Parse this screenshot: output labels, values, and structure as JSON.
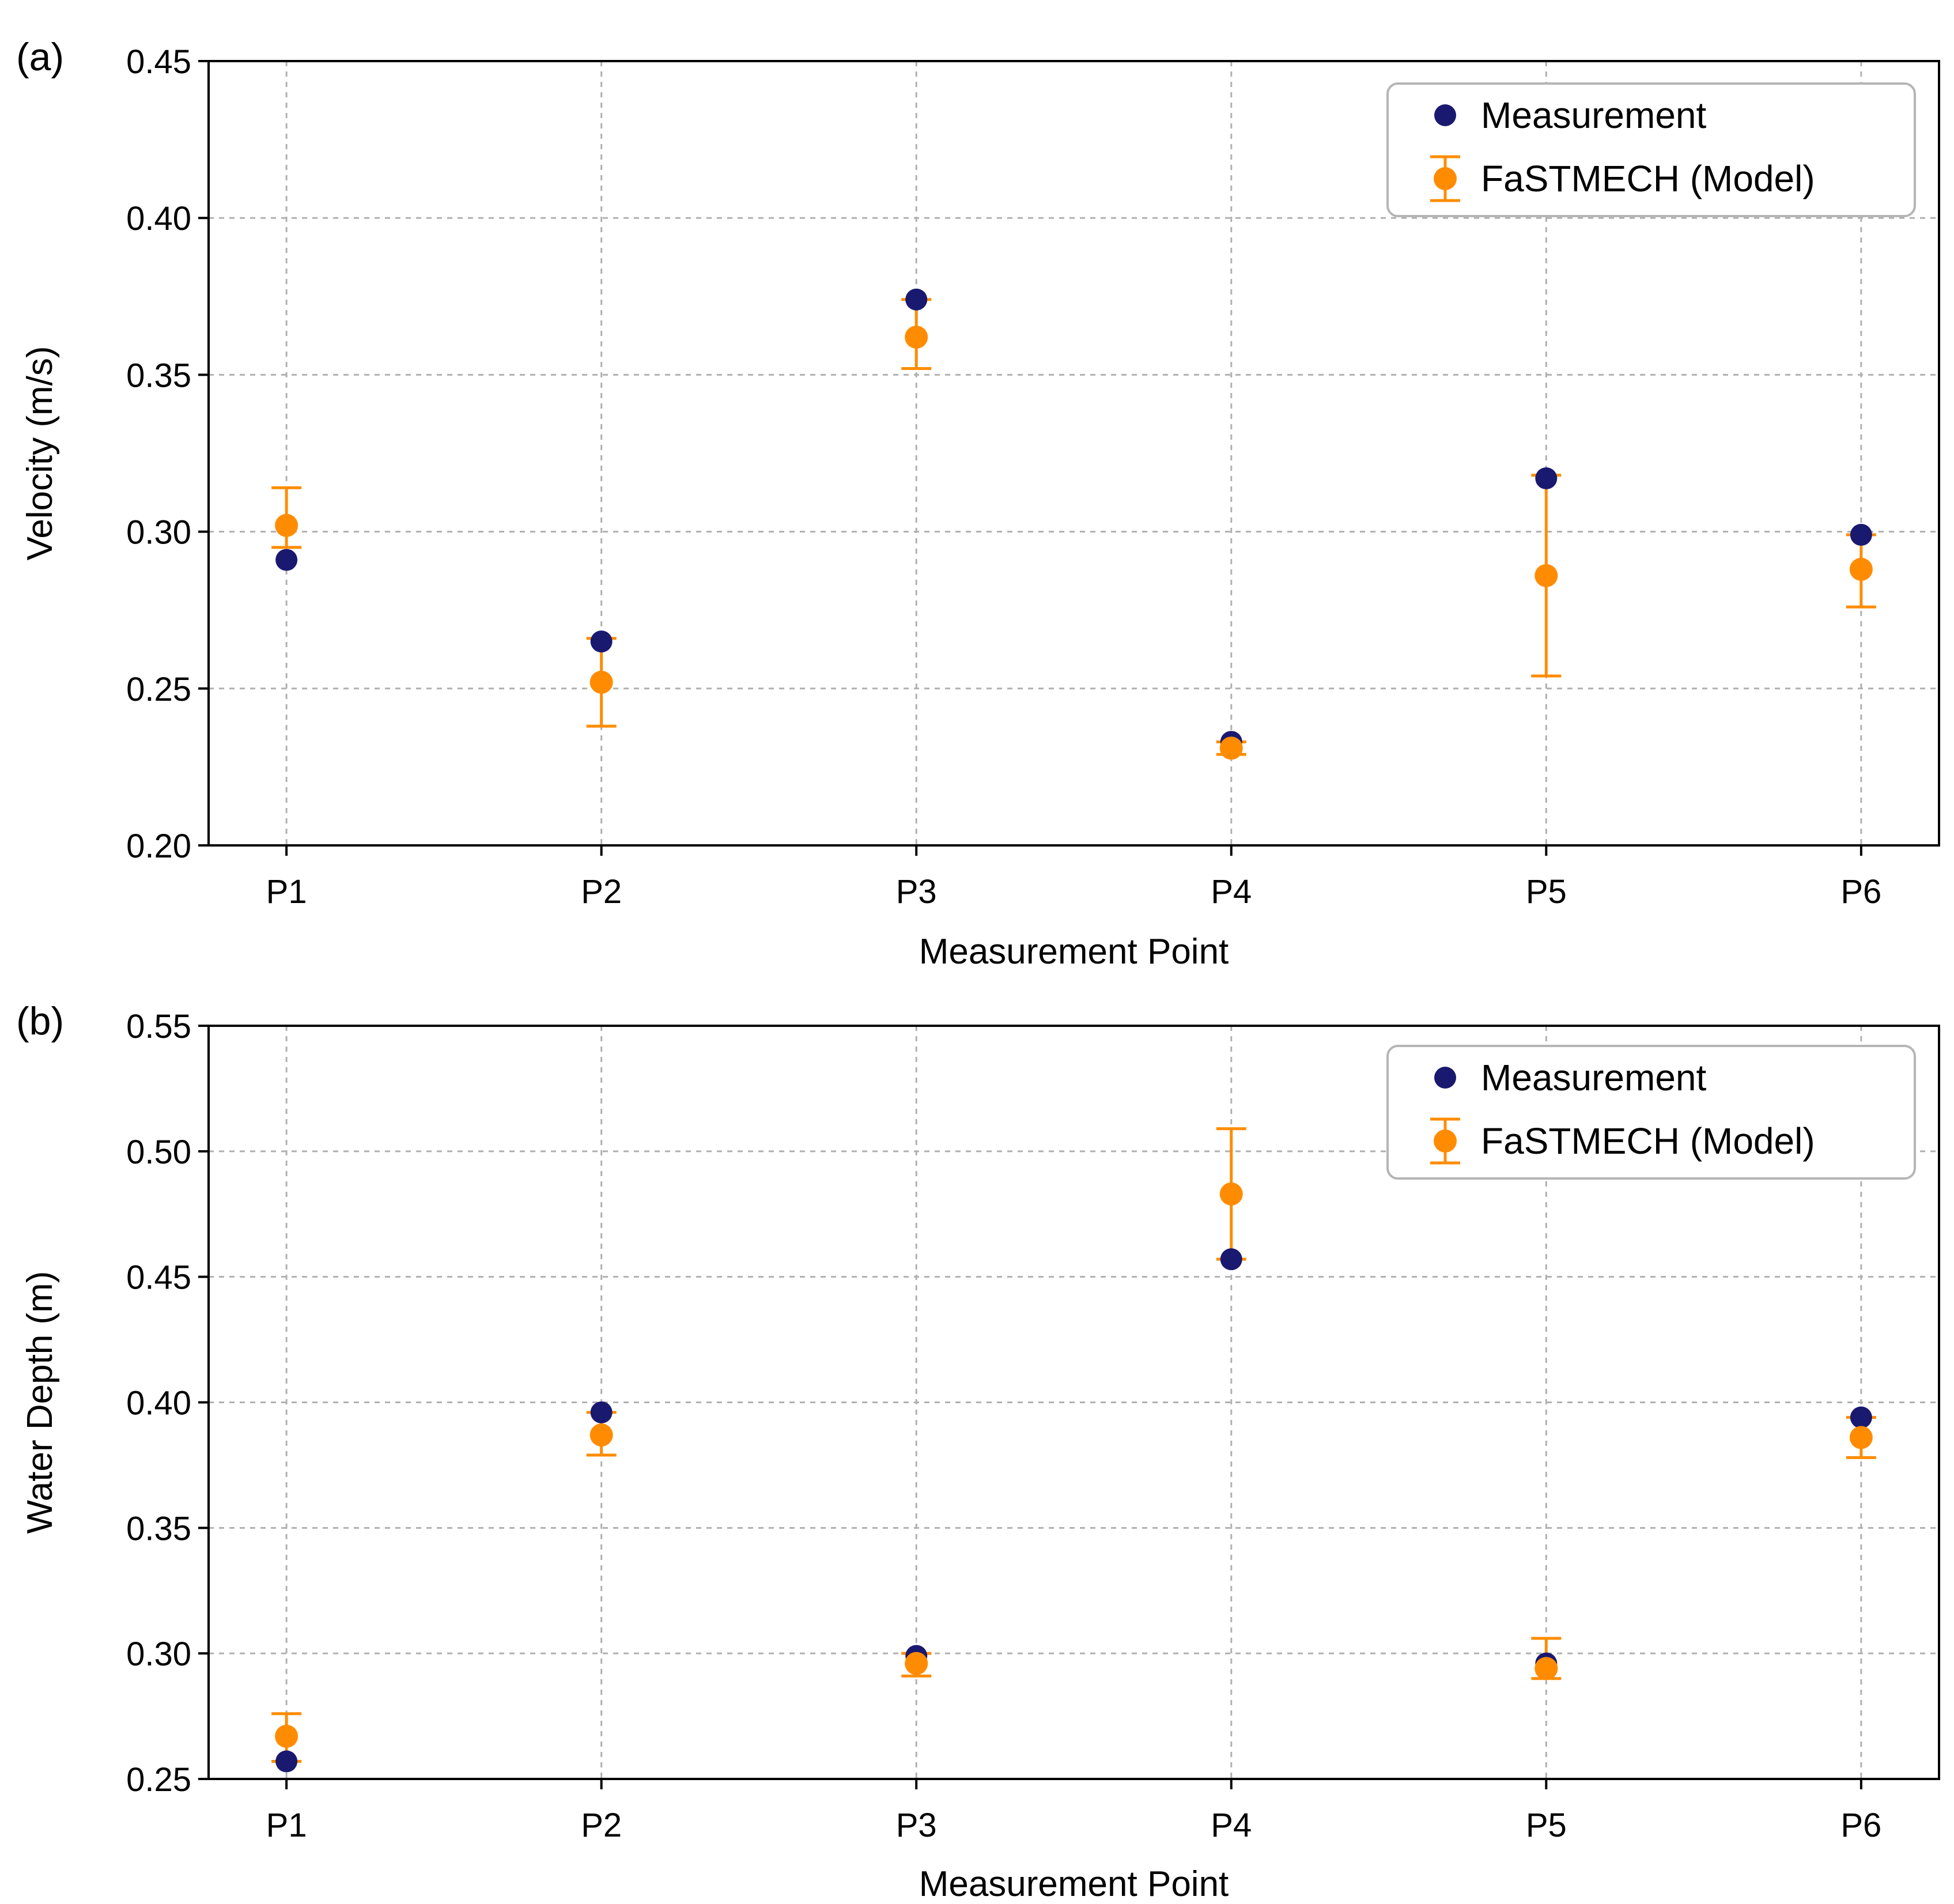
{
  "chart_data": [
    {
      "type": "scatter",
      "panel_label": "(a)",
      "title": "",
      "xlabel": "Measurement Point",
      "ylabel": "Velocity (m/s)",
      "categories": [
        "P1",
        "P2",
        "P3",
        "P4",
        "P5",
        "P6"
      ],
      "ylim": [
        0.2,
        0.45
      ],
      "yticks": [
        "0.20",
        "0.25",
        "0.30",
        "0.35",
        "0.40",
        "0.45"
      ],
      "grid": true,
      "legend_position": "top-right",
      "series": [
        {
          "name": "Measurement",
          "color": "#191970",
          "values": [
            0.291,
            0.265,
            0.374,
            0.233,
            0.317,
            0.299
          ]
        },
        {
          "name": "FaSTMECH (Model)",
          "color": "#ff8c00",
          "values": [
            0.302,
            0.252,
            0.362,
            0.231,
            0.286,
            0.288
          ],
          "err_low": [
            0.295,
            0.238,
            0.352,
            0.229,
            0.254,
            0.276
          ],
          "err_high": [
            0.314,
            0.266,
            0.374,
            0.233,
            0.318,
            0.299
          ]
        }
      ]
    },
    {
      "type": "scatter",
      "panel_label": "(b)",
      "title": "",
      "xlabel": "Measurement Point",
      "ylabel": "Water Depth (m)",
      "categories": [
        "P1",
        "P2",
        "P3",
        "P4",
        "P5",
        "P6"
      ],
      "ylim": [
        0.25,
        0.55
      ],
      "yticks": [
        "0.25",
        "0.30",
        "0.35",
        "0.40",
        "0.45",
        "0.50",
        "0.55"
      ],
      "grid": true,
      "legend_position": "top-right",
      "series": [
        {
          "name": "Measurement",
          "color": "#191970",
          "values": [
            0.257,
            0.396,
            0.299,
            0.457,
            0.296,
            0.394
          ]
        },
        {
          "name": "FaSTMECH (Model)",
          "color": "#ff8c00",
          "values": [
            0.267,
            0.387,
            0.296,
            0.483,
            0.294,
            0.386
          ],
          "err_low": [
            0.257,
            0.379,
            0.291,
            0.457,
            0.29,
            0.378
          ],
          "err_high": [
            0.276,
            0.396,
            0.3,
            0.509,
            0.306,
            0.394
          ]
        }
      ]
    }
  ]
}
